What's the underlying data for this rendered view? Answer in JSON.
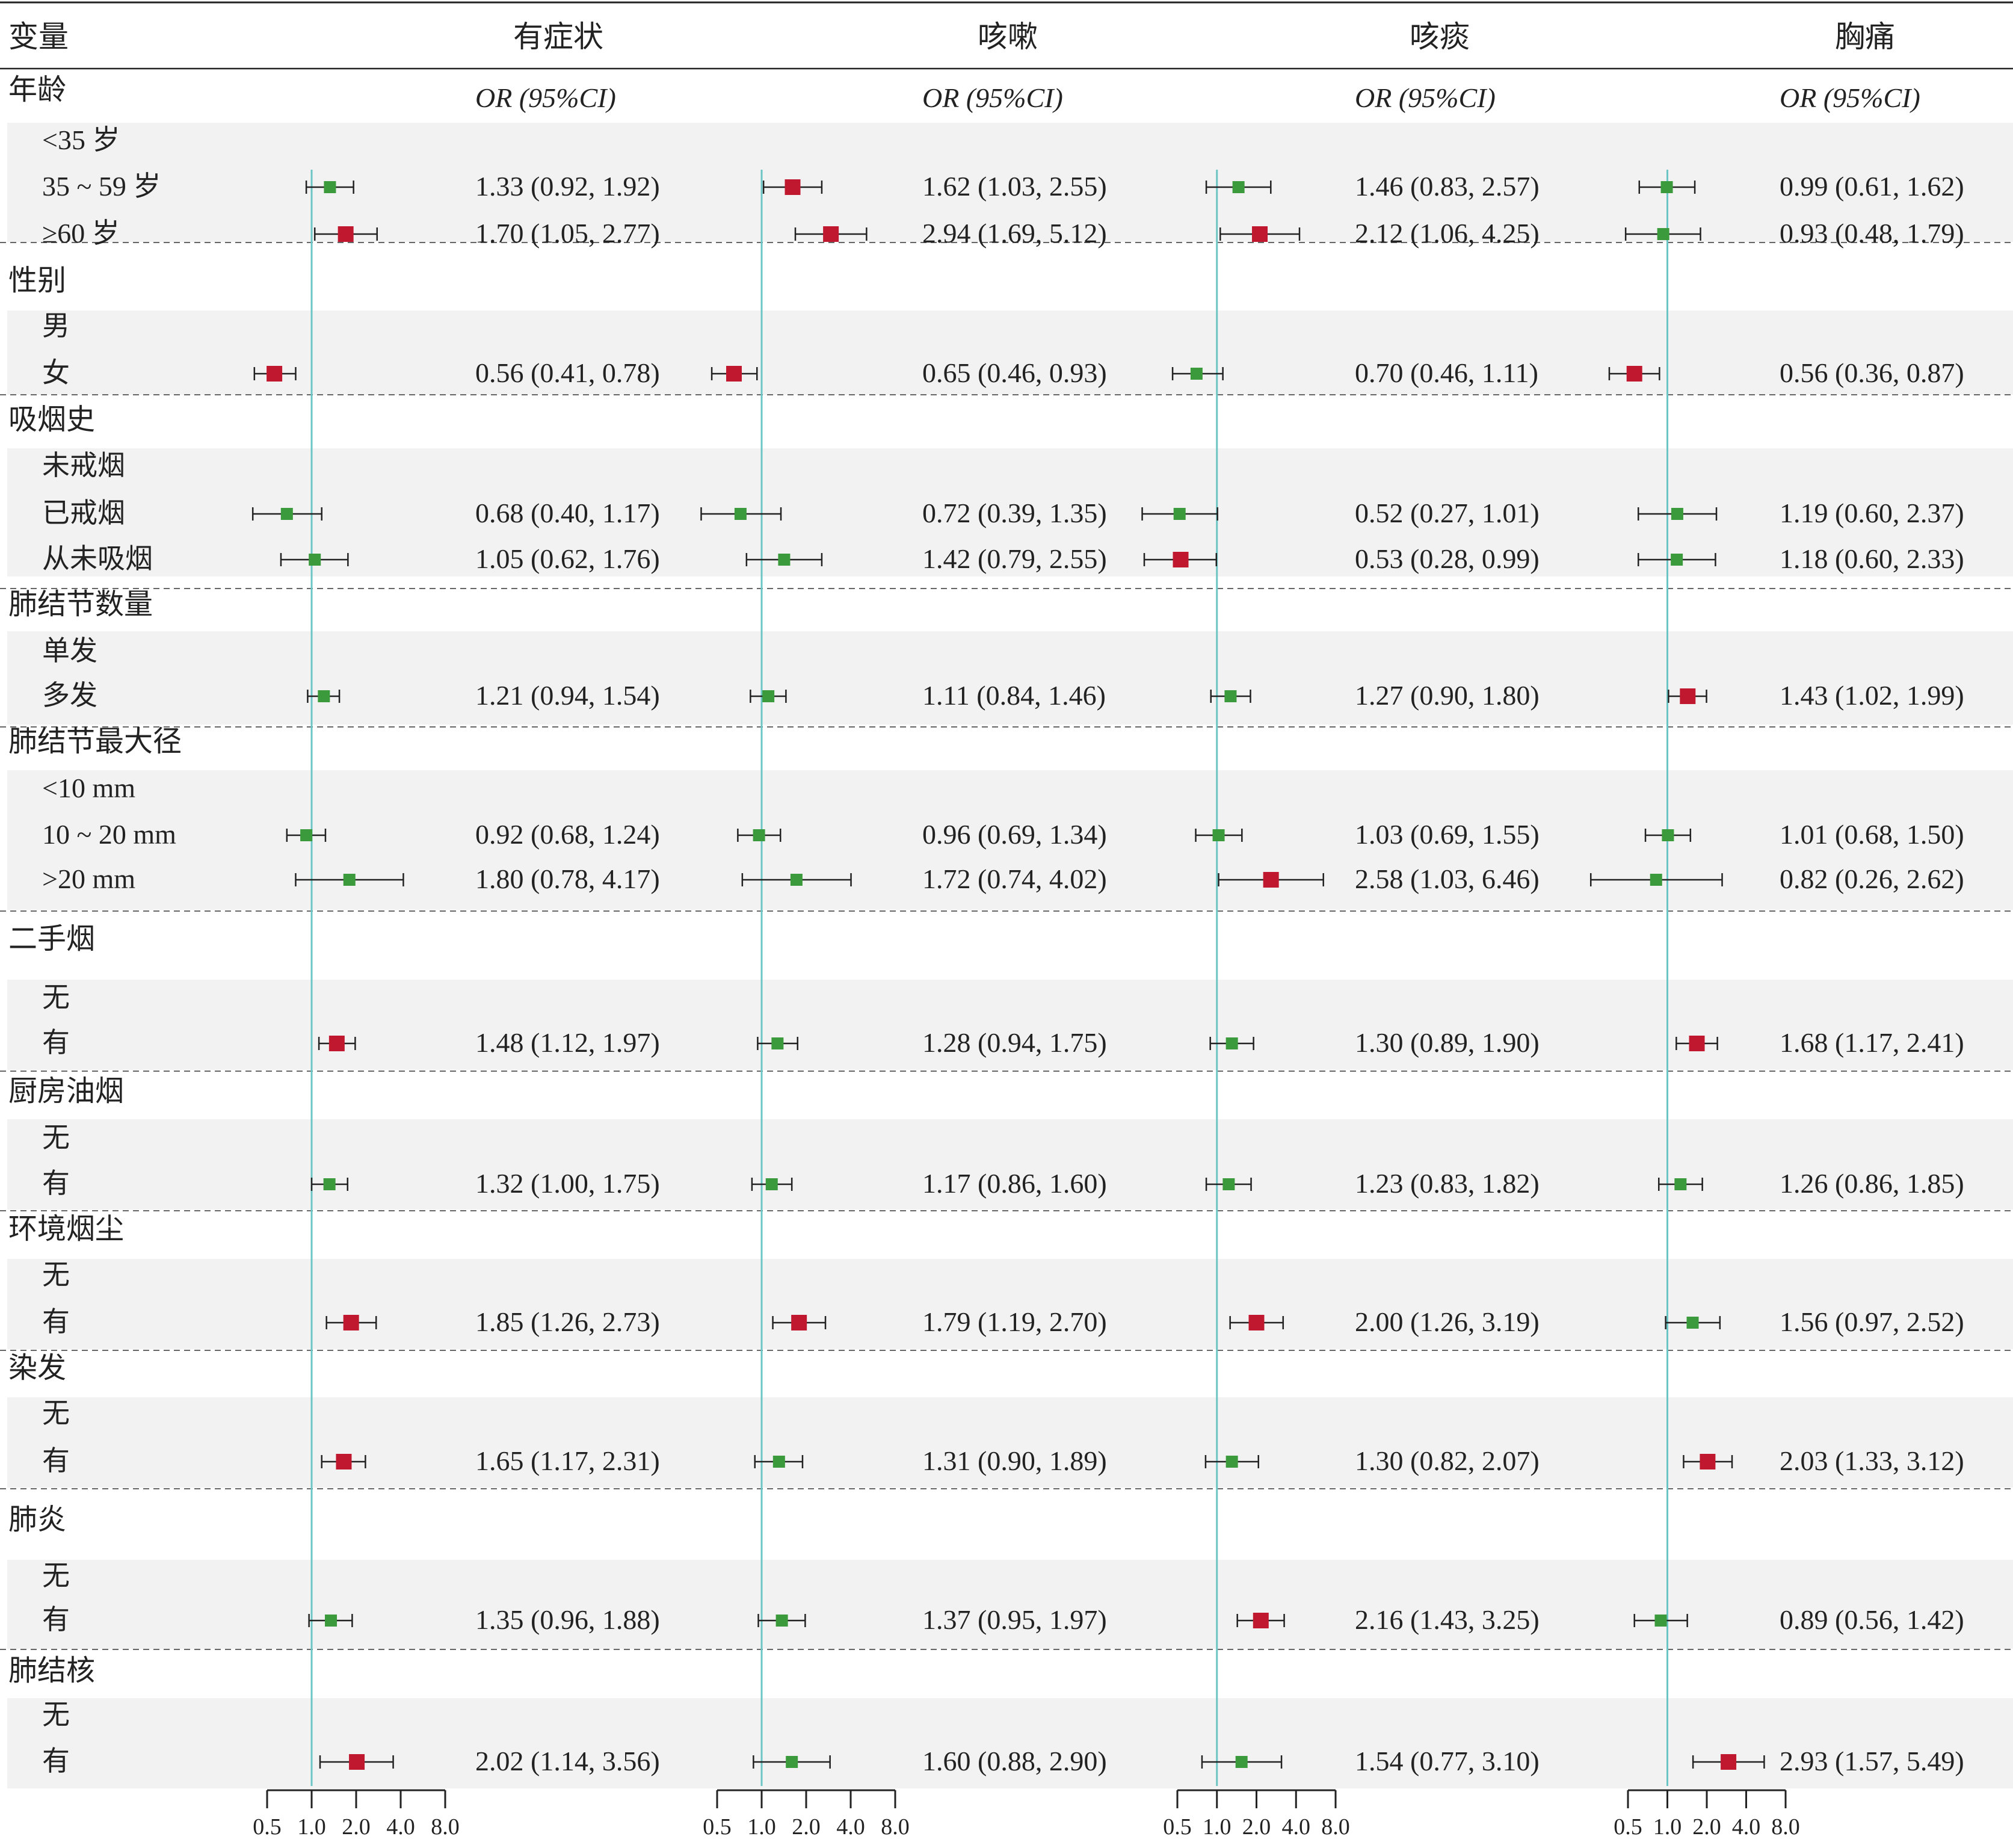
{
  "header": {
    "variable": "变量",
    "outcomes": [
      "有症状",
      "咳嗽",
      "咳痰",
      "胸痛"
    ],
    "or_label": "OR (95%CI)"
  },
  "colors": {
    "significant": "#c0192f",
    "nonsignificant": "#3b9a3b",
    "reference_line": "#6cc5c5",
    "band": "#f2f2f2",
    "whisker": "#222222"
  },
  "axis": {
    "scale": "log2",
    "range": [
      0.5,
      8.0
    ],
    "ticks": [
      "0.5",
      "1.0",
      "2.0",
      "4.0",
      "8.0"
    ],
    "reference": 1.0
  },
  "chart_data": [
    {
      "type": "forest",
      "title": "有症状",
      "xlim": [
        0.5,
        8.0
      ],
      "rows": [
        {
          "label": "35 ~ 59 岁",
          "or": 1.33,
          "lo": 0.92,
          "hi": 1.92,
          "text": "1.33 (0.92, 1.92)",
          "sig": false
        },
        {
          "label": "≥60 岁",
          "or": 1.7,
          "lo": 1.05,
          "hi": 2.77,
          "text": "1.70 (1.05, 2.77)",
          "sig": true
        },
        {
          "label": "女",
          "or": 0.56,
          "lo": 0.41,
          "hi": 0.78,
          "text": "0.56 (0.41, 0.78)",
          "sig": true
        },
        {
          "label": "已戒烟",
          "or": 0.68,
          "lo": 0.4,
          "hi": 1.17,
          "text": "0.68 (0.40, 1.17)",
          "sig": false
        },
        {
          "label": "从未吸烟",
          "or": 1.05,
          "lo": 0.62,
          "hi": 1.76,
          "text": "1.05 (0.62, 1.76)",
          "sig": false
        },
        {
          "label": "多发",
          "or": 1.21,
          "lo": 0.94,
          "hi": 1.54,
          "text": "1.21 (0.94, 1.54)",
          "sig": false
        },
        {
          "label": "10 ~ 20 mm",
          "or": 0.92,
          "lo": 0.68,
          "hi": 1.24,
          "text": "0.92 (0.68, 1.24)",
          "sig": false
        },
        {
          "label": ">20 mm",
          "or": 1.8,
          "lo": 0.78,
          "hi": 4.17,
          "text": "1.80 (0.78, 4.17)",
          "sig": false
        },
        {
          "label": "二手烟 有",
          "or": 1.48,
          "lo": 1.12,
          "hi": 1.97,
          "text": "1.48 (1.12, 1.97)",
          "sig": true
        },
        {
          "label": "厨房油烟 有",
          "or": 1.32,
          "lo": 1.0,
          "hi": 1.75,
          "text": "1.32 (1.00, 1.75)",
          "sig": false
        },
        {
          "label": "环境烟尘 有",
          "or": 1.85,
          "lo": 1.26,
          "hi": 2.73,
          "text": "1.85 (1.26, 2.73)",
          "sig": true
        },
        {
          "label": "染发 有",
          "or": 1.65,
          "lo": 1.17,
          "hi": 2.31,
          "text": "1.65 (1.17, 2.31)",
          "sig": true
        },
        {
          "label": "肺炎 有",
          "or": 1.35,
          "lo": 0.96,
          "hi": 1.88,
          "text": "1.35 (0.96, 1.88)",
          "sig": false
        },
        {
          "label": "肺结核 有",
          "or": 2.02,
          "lo": 1.14,
          "hi": 3.56,
          "text": "2.02 (1.14, 3.56)",
          "sig": true
        }
      ]
    },
    {
      "type": "forest",
      "title": "咳嗽",
      "xlim": [
        0.5,
        8.0
      ],
      "rows": [
        {
          "label": "35 ~ 59 岁",
          "or": 1.62,
          "lo": 1.03,
          "hi": 2.55,
          "text": "1.62 (1.03, 2.55)",
          "sig": true
        },
        {
          "label": "≥60 岁",
          "or": 2.94,
          "lo": 1.69,
          "hi": 5.12,
          "text": "2.94 (1.69, 5.12)",
          "sig": true
        },
        {
          "label": "女",
          "or": 0.65,
          "lo": 0.46,
          "hi": 0.93,
          "text": "0.65 (0.46, 0.93)",
          "sig": true
        },
        {
          "label": "已戒烟",
          "or": 0.72,
          "lo": 0.39,
          "hi": 1.35,
          "text": "0.72 (0.39, 1.35)",
          "sig": false
        },
        {
          "label": "从未吸烟",
          "or": 1.42,
          "lo": 0.79,
          "hi": 2.55,
          "text": "1.42 (0.79, 2.55)",
          "sig": false
        },
        {
          "label": "多发",
          "or": 1.11,
          "lo": 0.84,
          "hi": 1.46,
          "text": "1.11 (0.84, 1.46)",
          "sig": false
        },
        {
          "label": "10 ~ 20 mm",
          "or": 0.96,
          "lo": 0.69,
          "hi": 1.34,
          "text": "0.96 (0.69, 1.34)",
          "sig": false
        },
        {
          "label": ">20 mm",
          "or": 1.72,
          "lo": 0.74,
          "hi": 4.02,
          "text": "1.72 (0.74, 4.02)",
          "sig": false
        },
        {
          "label": "二手烟 有",
          "or": 1.28,
          "lo": 0.94,
          "hi": 1.75,
          "text": "1.28 (0.94, 1.75)",
          "sig": false
        },
        {
          "label": "厨房油烟 有",
          "or": 1.17,
          "lo": 0.86,
          "hi": 1.6,
          "text": "1.17 (0.86, 1.60)",
          "sig": false
        },
        {
          "label": "环境烟尘 有",
          "or": 1.79,
          "lo": 1.19,
          "hi": 2.7,
          "text": "1.79 (1.19, 2.70)",
          "sig": true
        },
        {
          "label": "染发 有",
          "or": 1.31,
          "lo": 0.9,
          "hi": 1.89,
          "text": "1.31  (0.90, 1.89)",
          "sig": false
        },
        {
          "label": "肺炎 有",
          "or": 1.37,
          "lo": 0.95,
          "hi": 1.97,
          "text": "1.37  (0.95, 1.97)",
          "sig": false
        },
        {
          "label": "肺结核 有",
          "or": 1.6,
          "lo": 0.88,
          "hi": 2.9,
          "text": "1.60 (0.88, 2.90)",
          "sig": false
        }
      ]
    },
    {
      "type": "forest",
      "title": "咳痰",
      "xlim": [
        0.5,
        8.0
      ],
      "rows": [
        {
          "label": "35 ~ 59 岁",
          "or": 1.46,
          "lo": 0.83,
          "hi": 2.57,
          "text": "1.46 (0.83, 2.57)",
          "sig": false
        },
        {
          "label": "≥60 岁",
          "or": 2.12,
          "lo": 1.06,
          "hi": 4.25,
          "text": "2.12 (1.06, 4.25)",
          "sig": true
        },
        {
          "label": "女",
          "or": 0.7,
          "lo": 0.46,
          "hi": 1.11,
          "text": "0.70 (0.46, 1.11)",
          "sig": false
        },
        {
          "label": "已戒烟",
          "or": 0.52,
          "lo": 0.27,
          "hi": 1.01,
          "text": "0.52 (0.27, 1.01)",
          "sig": false
        },
        {
          "label": "从未吸烟",
          "or": 0.53,
          "lo": 0.28,
          "hi": 0.99,
          "text": "0.53 (0.28, 0.99)",
          "sig": true
        },
        {
          "label": "多发",
          "or": 1.27,
          "lo": 0.9,
          "hi": 1.8,
          "text": "1.27 (0.90, 1.80)",
          "sig": false
        },
        {
          "label": "10 ~ 20 mm",
          "or": 1.03,
          "lo": 0.69,
          "hi": 1.55,
          "text": "1.03 (0.69, 1.55)",
          "sig": false
        },
        {
          "label": ">20 mm",
          "or": 2.58,
          "lo": 1.03,
          "hi": 6.46,
          "text": "2.58 (1.03, 6.46)",
          "sig": true
        },
        {
          "label": "二手烟 有",
          "or": 1.3,
          "lo": 0.89,
          "hi": 1.9,
          "text": "1.30 (0.89, 1.90)",
          "sig": false
        },
        {
          "label": "厨房油烟 有",
          "or": 1.23,
          "lo": 0.83,
          "hi": 1.82,
          "text": "1.23 (0.83, 1.82)",
          "sig": false
        },
        {
          "label": "环境烟尘 有",
          "or": 2.0,
          "lo": 1.26,
          "hi": 3.19,
          "text": "2.00 (1.26, 3.19)",
          "sig": true
        },
        {
          "label": "染发 有",
          "or": 1.3,
          "lo": 0.82,
          "hi": 2.07,
          "text": "1.30 (0.82, 2.07)",
          "sig": false
        },
        {
          "label": "肺炎 有",
          "or": 2.16,
          "lo": 1.43,
          "hi": 3.25,
          "text": "2.16 (1.43, 3.25)",
          "sig": true
        },
        {
          "label": "肺结核 有",
          "or": 1.54,
          "lo": 0.77,
          "hi": 3.1,
          "text": "1.54 (0.77, 3.10)",
          "sig": false
        }
      ]
    },
    {
      "type": "forest",
      "title": "胸痛",
      "xlim": [
        0.5,
        8.0
      ],
      "rows": [
        {
          "label": "35 ~ 59 岁",
          "or": 0.99,
          "lo": 0.61,
          "hi": 1.62,
          "text": "0.99 (0.61, 1.62)",
          "sig": false
        },
        {
          "label": "≥60 岁",
          "or": 0.93,
          "lo": 0.48,
          "hi": 1.79,
          "text": "0.93 (0.48, 1.79)",
          "sig": false
        },
        {
          "label": "女",
          "or": 0.56,
          "lo": 0.36,
          "hi": 0.87,
          "text": "0.56 (0.36, 0.87)",
          "sig": true
        },
        {
          "label": "已戒烟",
          "or": 1.19,
          "lo": 0.6,
          "hi": 2.37,
          "text": "1.19 (0.60, 2.37)",
          "sig": false
        },
        {
          "label": "从未吸烟",
          "or": 1.18,
          "lo": 0.6,
          "hi": 2.33,
          "text": "1.18 (0.60, 2.33)",
          "sig": false
        },
        {
          "label": "多发",
          "or": 1.43,
          "lo": 1.02,
          "hi": 1.99,
          "text": "1.43 (1.02, 1.99)",
          "sig": true
        },
        {
          "label": "10 ~ 20 mm",
          "or": 1.01,
          "lo": 0.68,
          "hi": 1.5,
          "text": "1.01 (0.68, 1.50)",
          "sig": false
        },
        {
          "label": ">20 mm",
          "or": 0.82,
          "lo": 0.26,
          "hi": 2.62,
          "text": "0.82 (0.26, 2.62)",
          "sig": false
        },
        {
          "label": "二手烟 有",
          "or": 1.68,
          "lo": 1.17,
          "hi": 2.41,
          "text": "1.68 (1.17, 2.41)",
          "sig": true
        },
        {
          "label": "厨房油烟 有",
          "or": 1.26,
          "lo": 0.86,
          "hi": 1.85,
          "text": "1.26 (0.86, 1.85)",
          "sig": false
        },
        {
          "label": "环境烟尘 有",
          "or": 1.56,
          "lo": 0.97,
          "hi": 2.52,
          "text": "1.56 (0.97, 2.52)",
          "sig": false
        },
        {
          "label": "染发 有",
          "or": 2.03,
          "lo": 1.33,
          "hi": 3.12,
          "text": "2.03 (1.33, 3.12)",
          "sig": true
        },
        {
          "label": "肺炎 有",
          "or": 0.89,
          "lo": 0.56,
          "hi": 1.42,
          "text": "0.89 (0.56, 1.42)",
          "sig": false
        },
        {
          "label": "肺结核 有",
          "or": 2.93,
          "lo": 1.57,
          "hi": 5.49,
          "text": "2.93 (1.57, 5.49)",
          "sig": true
        }
      ]
    }
  ],
  "groups": [
    {
      "title": "年龄",
      "levels": [
        "<35 岁",
        "35 ~ 59 岁",
        "≥60 岁"
      ],
      "start_row": 0
    },
    {
      "title": "性别",
      "levels": [
        "男",
        "女"
      ],
      "start_row": 2
    },
    {
      "title": "吸烟史",
      "levels": [
        "未戒烟",
        "已戒烟",
        "从未吸烟"
      ],
      "start_row": 3
    },
    {
      "title": "肺结节数量",
      "levels": [
        "单发",
        "多发"
      ],
      "start_row": 5
    },
    {
      "title": "肺结节最大径",
      "levels": [
        "<10 mm",
        "10 ~ 20 mm",
        ">20 mm"
      ],
      "start_row": 6
    },
    {
      "title": "二手烟",
      "levels": [
        "无",
        "有"
      ],
      "start_row": 8
    },
    {
      "title": "厨房油烟",
      "levels": [
        "无",
        "有"
      ],
      "start_row": 9
    },
    {
      "title": "环境烟尘",
      "levels": [
        "无",
        "有"
      ],
      "start_row": 10
    },
    {
      "title": "染发",
      "levels": [
        "无",
        "有"
      ],
      "start_row": 11
    },
    {
      "title": "肺炎",
      "levels": [
        "无",
        "有"
      ],
      "start_row": 12
    },
    {
      "title": "肺结核",
      "levels": [
        "无",
        "有"
      ],
      "start_row": 13
    }
  ]
}
